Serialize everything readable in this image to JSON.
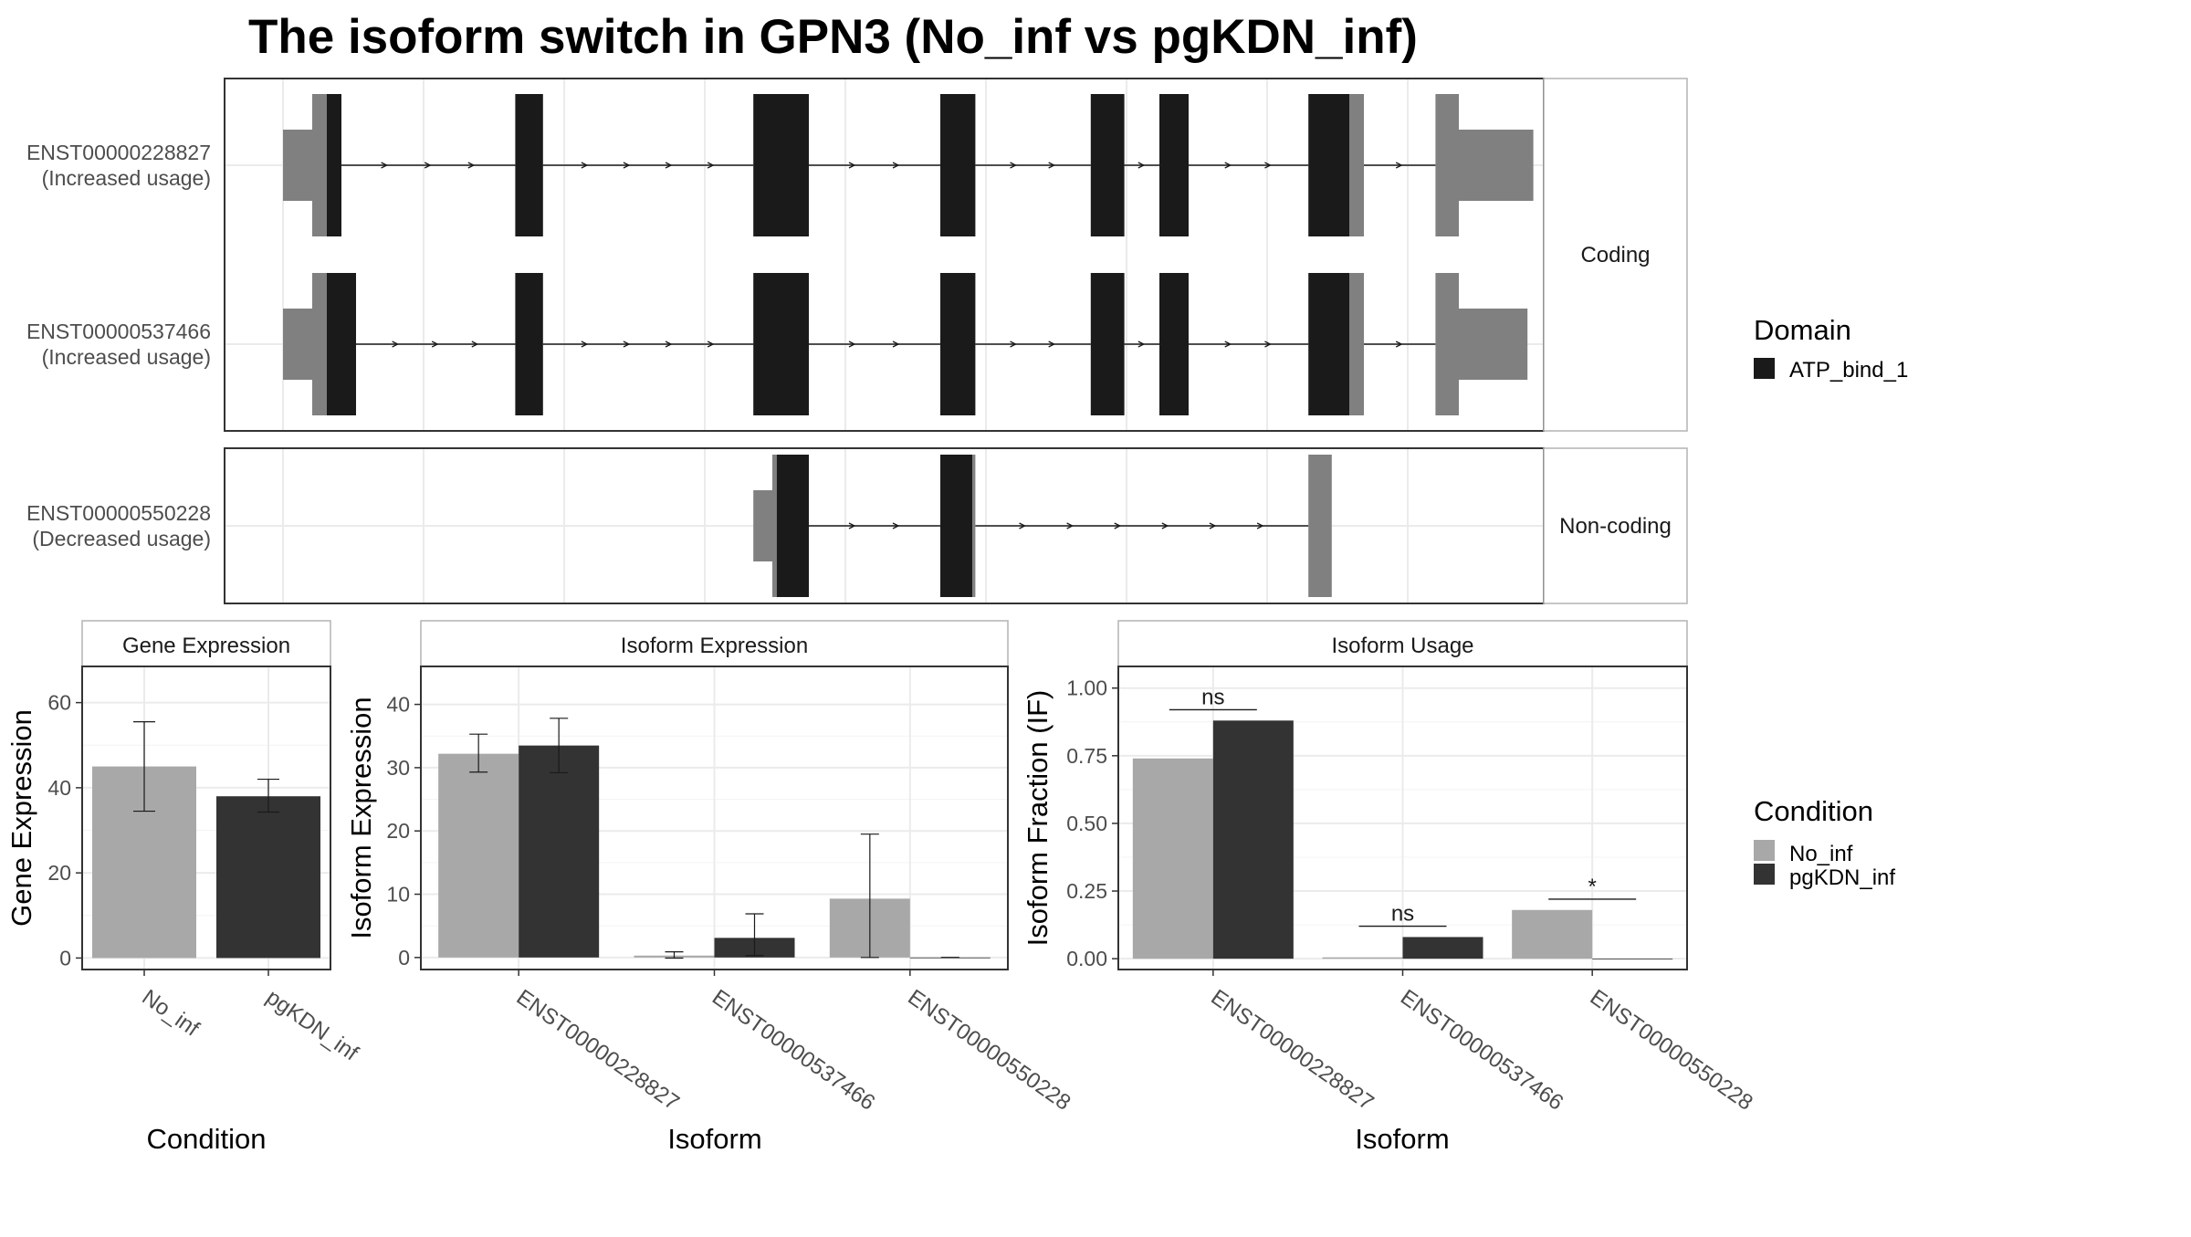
{
  "title": "The isoform switch in GPN3 (No_inf vs pgKDN_inf)",
  "colors": {
    "domain": "#1a1a1a",
    "utr": "#808080",
    "no_inf": "#a8a8a8",
    "pgkdn_inf": "#333333",
    "grid": "#ebebeb",
    "panel_border": "#333333",
    "strip_border": "#b3b3b3"
  },
  "chart_data": [
    {
      "type": "transcript-structure",
      "facets": [
        {
          "label": "Coding",
          "transcripts": [
            {
              "name": "ENST00000228827",
              "usage": "(Increased usage)",
              "exons": [
                {
                  "kind": "utr",
                  "start": 0.0,
                  "end": 0.2
                },
                {
                  "kind": "utr",
                  "start": 0.2,
                  "end": 0.3
                },
                {
                  "kind": "domain",
                  "start": 0.3,
                  "end": 0.4
                },
                {
                  "kind": "domain",
                  "start": 1.59,
                  "end": 1.78
                },
                {
                  "kind": "domain",
                  "start": 3.22,
                  "end": 3.6
                },
                {
                  "kind": "domain",
                  "start": 4.5,
                  "end": 4.74
                },
                {
                  "kind": "domain",
                  "start": 5.53,
                  "end": 5.76
                },
                {
                  "kind": "domain",
                  "start": 6.0,
                  "end": 6.2
                },
                {
                  "kind": "domain",
                  "start": 7.02,
                  "end": 7.3
                },
                {
                  "kind": "utr",
                  "start": 7.3,
                  "end": 7.4
                },
                {
                  "kind": "utr",
                  "start": 7.89,
                  "end": 8.05
                },
                {
                  "kind": "utr",
                  "start": 8.05,
                  "end": 8.56
                }
              ]
            },
            {
              "name": "ENST00000537466",
              "usage": "(Increased usage)",
              "exons": [
                {
                  "kind": "utr",
                  "start": 0.0,
                  "end": 0.2
                },
                {
                  "kind": "utr",
                  "start": 0.2,
                  "end": 0.3
                },
                {
                  "kind": "domain",
                  "start": 0.3,
                  "end": 0.5
                },
                {
                  "kind": "domain",
                  "start": 1.59,
                  "end": 1.78
                },
                {
                  "kind": "domain",
                  "start": 3.22,
                  "end": 3.6
                },
                {
                  "kind": "domain",
                  "start": 4.5,
                  "end": 4.74
                },
                {
                  "kind": "domain",
                  "start": 5.53,
                  "end": 5.76
                },
                {
                  "kind": "domain",
                  "start": 6.0,
                  "end": 6.2
                },
                {
                  "kind": "domain",
                  "start": 7.02,
                  "end": 7.3
                },
                {
                  "kind": "utr",
                  "start": 7.3,
                  "end": 7.4
                },
                {
                  "kind": "utr",
                  "start": 7.89,
                  "end": 8.05
                },
                {
                  "kind": "utr",
                  "start": 8.05,
                  "end": 8.52
                }
              ]
            }
          ]
        },
        {
          "label": "Non-coding",
          "transcripts": [
            {
              "name": "ENST00000550228",
              "usage": "(Decreased usage)",
              "exons": [
                {
                  "kind": "utr",
                  "start": 3.22,
                  "end": 3.35
                },
                {
                  "kind": "utr",
                  "start": 3.35,
                  "end": 3.38
                },
                {
                  "kind": "domain",
                  "start": 3.38,
                  "end": 3.6
                },
                {
                  "kind": "domain",
                  "start": 4.5,
                  "end": 4.72
                },
                {
                  "kind": "utr",
                  "start": 4.72,
                  "end": 4.74
                },
                {
                  "kind": "utr",
                  "start": 7.02,
                  "end": 7.18
                }
              ]
            }
          ]
        }
      ],
      "legend": {
        "title": "Domain",
        "entries": [
          "ATP_bind_1"
        ]
      }
    },
    {
      "type": "bar",
      "strip": "Gene Expression",
      "xlabel": "Condition",
      "ylabel": "Gene Expression",
      "categories": [
        "No_inf",
        "pgKDN_inf"
      ],
      "values": [
        45,
        38
      ],
      "errors": [
        [
          34.5,
          55.5
        ],
        [
          34.3,
          42
        ]
      ],
      "ylim": [
        -2.7,
        68.5
      ],
      "yticks": [
        0,
        20,
        40,
        60
      ]
    },
    {
      "type": "bar",
      "strip": "Isoform Expression",
      "xlabel": "Isoform",
      "ylabel": "Isoform Expression",
      "categories": [
        "ENST00000228827",
        "ENST00000537466",
        "ENST00000550228"
      ],
      "series": [
        {
          "name": "No_inf",
          "values": [
            32.2,
            0.3,
            9.3
          ],
          "errors": [
            [
              29.3,
              35.3
            ],
            [
              -0.1,
              0.9
            ],
            [
              0,
              19.5
            ]
          ]
        },
        {
          "name": "pgKDN_inf",
          "values": [
            33.5,
            3.1,
            0
          ],
          "errors": [
            [
              29.2,
              37.8
            ],
            [
              0.3,
              6.9
            ],
            [
              0,
              0
            ]
          ]
        }
      ],
      "ylim": [
        -1.9,
        46
      ],
      "yticks": [
        0,
        10,
        20,
        30,
        40
      ]
    },
    {
      "type": "bar",
      "strip": "Isoform Usage",
      "xlabel": "Isoform",
      "ylabel": "Isoform Fraction (IF)",
      "categories": [
        "ENST00000228827",
        "ENST00000537466",
        "ENST00000550228"
      ],
      "series": [
        {
          "name": "No_inf",
          "values": [
            0.74,
            0.005,
            0.18
          ]
        },
        {
          "name": "pgKDN_inf",
          "values": [
            0.88,
            0.08,
            0
          ]
        }
      ],
      "significance": [
        "ns",
        "ns",
        "*"
      ],
      "significance_y": [
        0.92,
        0.12,
        0.22
      ],
      "ylim": [
        -0.04,
        1.08
      ],
      "yticks": [
        0,
        0.25,
        0.5,
        0.75,
        1.0
      ],
      "ytick_labels": [
        "0.00",
        "0.25",
        "0.50",
        "0.75",
        "1.00"
      ]
    }
  ],
  "condition_legend": {
    "title": "Condition",
    "entries": [
      "No_inf",
      "pgKDN_inf"
    ]
  }
}
